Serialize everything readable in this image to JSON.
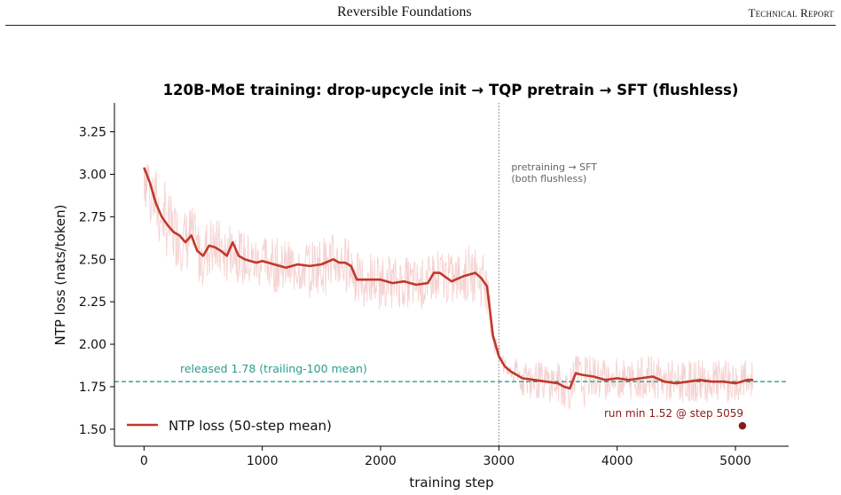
{
  "header": {
    "center_title": "Reversible Foundations",
    "right_label": "Technical Report"
  },
  "chart_data": {
    "type": "line",
    "title": "120B-MoE training: drop-upcycle init → TQP pretrain → SFT (flushless)",
    "xlabel": "training step",
    "ylabel": "NTP loss (nats/token)",
    "xlim": [
      -250,
      5450
    ],
    "ylim": [
      1.4,
      3.42
    ],
    "xticks": [
      0,
      1000,
      2000,
      3000,
      4000,
      5000
    ],
    "yticks": [
      1.5,
      1.75,
      2.0,
      2.25,
      2.5,
      2.75,
      3.0,
      3.25
    ],
    "ytick_labels": [
      "1.50",
      "1.75",
      "2.00",
      "2.25",
      "2.50",
      "2.75",
      "3.00",
      "3.25"
    ],
    "grid": false,
    "legend_position": "lower-left",
    "colors": {
      "mean": "#c0392b",
      "raw": "#f4cccc",
      "released": "#2a9d8f",
      "min": "#8b1a1a",
      "divider": "#777777"
    },
    "series": [
      {
        "name": "NTP loss (50-step mean)",
        "x": [
          0,
          50,
          100,
          150,
          200,
          250,
          300,
          350,
          400,
          450,
          500,
          550,
          600,
          650,
          700,
          750,
          800,
          850,
          900,
          950,
          1000,
          1100,
          1200,
          1300,
          1400,
          1500,
          1600,
          1650,
          1700,
          1750,
          1800,
          1900,
          2000,
          2100,
          2200,
          2300,
          2400,
          2450,
          2500,
          2600,
          2700,
          2750,
          2800,
          2850,
          2900,
          2950,
          3000,
          3050,
          3100,
          3200,
          3300,
          3400,
          3500,
          3550,
          3600,
          3650,
          3700,
          3800,
          3900,
          4000,
          4100,
          4200,
          4300,
          4400,
          4500,
          4600,
          4700,
          4800,
          4900,
          5000,
          5050,
          5100,
          5150
        ],
        "values": [
          3.04,
          2.95,
          2.83,
          2.75,
          2.7,
          2.66,
          2.64,
          2.6,
          2.64,
          2.55,
          2.52,
          2.58,
          2.57,
          2.55,
          2.52,
          2.6,
          2.52,
          2.5,
          2.49,
          2.48,
          2.49,
          2.47,
          2.45,
          2.47,
          2.46,
          2.47,
          2.5,
          2.48,
          2.48,
          2.46,
          2.38,
          2.38,
          2.38,
          2.36,
          2.37,
          2.35,
          2.36,
          2.42,
          2.42,
          2.37,
          2.4,
          2.41,
          2.42,
          2.39,
          2.34,
          2.05,
          1.93,
          1.87,
          1.84,
          1.8,
          1.79,
          1.78,
          1.77,
          1.75,
          1.74,
          1.83,
          1.82,
          1.81,
          1.79,
          1.8,
          1.79,
          1.8,
          1.81,
          1.78,
          1.77,
          1.78,
          1.79,
          1.78,
          1.78,
          1.77,
          1.78,
          1.79,
          1.79
        ]
      }
    ],
    "raw_band": {
      "x": [
        0,
        200,
        500,
        1000,
        1500,
        2000,
        2500,
        2850,
        3000,
        3200,
        3600,
        4000,
        4500,
        5000,
        5150
      ],
      "low": [
        2.72,
        2.48,
        2.33,
        2.3,
        2.26,
        2.2,
        2.2,
        2.19,
        1.83,
        1.68,
        1.62,
        1.65,
        1.65,
        1.65,
        1.66
      ],
      "high": [
        3.3,
        2.95,
        2.78,
        2.68,
        2.66,
        2.56,
        2.56,
        2.6,
        2.0,
        1.93,
        1.93,
        1.94,
        1.94,
        1.95,
        1.94
      ]
    },
    "annotations": {
      "released": {
        "y": 1.78,
        "label": "released 1.78 (trailing-100 mean)"
      },
      "phase_divider": {
        "x": 3000,
        "label_line1": "pretraining → SFT",
        "label_line2": "(both flushless)"
      },
      "run_min": {
        "x": 5059,
        "y": 1.52,
        "label": "run min 1.52 @ step 5059"
      }
    }
  }
}
